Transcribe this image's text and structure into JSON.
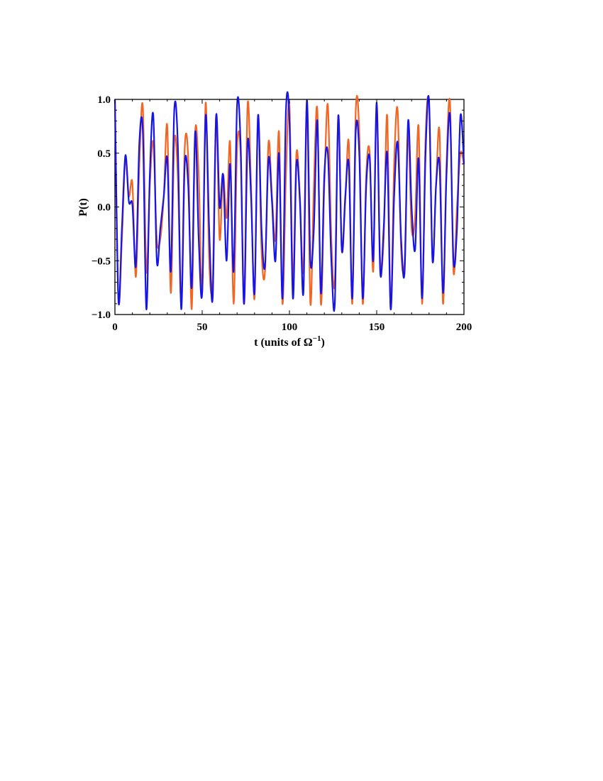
{
  "chart_data": {
    "type": "line",
    "xlabel": "t (units of Ω",
    "xlabel_sup": "−1",
    "xlabel_tail": ")",
    "ylabel": "P(t)",
    "xlim": [
      0,
      200
    ],
    "ylim": [
      -1.0,
      1.0
    ],
    "xticks": [
      "0",
      "50",
      "100",
      "150",
      "200"
    ],
    "xtick_values": [
      0,
      50,
      100,
      150,
      200
    ],
    "yticks": [
      "1.0",
      "0.5",
      "0.0",
      "−0.5",
      "−1.0"
    ],
    "ytick_values": [
      1.0,
      0.5,
      0.0,
      -0.5,
      -1.0
    ],
    "grid": false,
    "legend": "none",
    "series": [
      {
        "color": "#f26522",
        "x": [
          0,
          2,
          4,
          6,
          8,
          10,
          12,
          14,
          16,
          18,
          20,
          22,
          24,
          26,
          28,
          30,
          32,
          34,
          36,
          38,
          40,
          42,
          44,
          46,
          48,
          50,
          52,
          54,
          56,
          58,
          60,
          62,
          64,
          66,
          68,
          70,
          72,
          74,
          76,
          78,
          80,
          82,
          84,
          86,
          88,
          90,
          92,
          94,
          96,
          98,
          100,
          102,
          104,
          106,
          108,
          110,
          112,
          114,
          116,
          118,
          120,
          122,
          124,
          126,
          128,
          130,
          132,
          134,
          136,
          138,
          140,
          142,
          144,
          146,
          148,
          150,
          152,
          154,
          156,
          158,
          160,
          162,
          164,
          166,
          168,
          170,
          172,
          174,
          176,
          178,
          180,
          182,
          184,
          186,
          188,
          190,
          192,
          194,
          196,
          198,
          200
        ],
        "y": [
          1.0,
          -0.85,
          -0.3,
          0.45,
          0.1,
          0.22,
          -0.65,
          0.4,
          0.93,
          -0.6,
          0.2,
          0.6,
          -0.3,
          -0.3,
          0.1,
          0.75,
          -0.8,
          0.6,
          0.3,
          -0.9,
          0.55,
          0.45,
          -0.95,
          0.7,
          0.3,
          -0.8,
          0.97,
          -0.5,
          -0.7,
          0.85,
          -0.3,
          0.3,
          -0.1,
          0.6,
          -0.9,
          0.55,
          0.5,
          -0.9,
          0.95,
          0.2,
          -0.85,
          0.85,
          -0.4,
          -0.6,
          0.6,
          0.1,
          -0.3,
          0.7,
          -0.9,
          0.3,
          0.95,
          -0.7,
          0.5,
          0.1,
          -0.6,
          0.97,
          -0.9,
          0.2,
          0.9,
          -0.9,
          0.2,
          0.95,
          -0.3,
          -0.7,
          0.85,
          -0.4,
          0.05,
          0.6,
          -0.9,
          0.9,
          0.7,
          -0.9,
          0.3,
          0.5,
          -0.6,
          0.95,
          -0.5,
          -0.3,
          0.85,
          -0.95,
          0.4,
          0.9,
          -0.4,
          -0.5,
          0.7,
          -0.2,
          -0.1,
          0.75,
          -0.9,
          0.65,
          0.95,
          -0.5,
          0.2,
          0.7,
          -0.9,
          0.4,
          0.97,
          -0.6,
          0.0,
          0.5,
          0.4
        ]
      },
      {
        "color": "#1515e8",
        "x": [
          0,
          2,
          4,
          6,
          8,
          10,
          12,
          14,
          16,
          18,
          20,
          22,
          24,
          26,
          28,
          30,
          32,
          34,
          36,
          38,
          40,
          42,
          44,
          46,
          48,
          50,
          52,
          54,
          56,
          58,
          60,
          62,
          64,
          66,
          68,
          70,
          72,
          74,
          76,
          78,
          80,
          82,
          84,
          86,
          88,
          90,
          92,
          94,
          96,
          98,
          100,
          102,
          104,
          106,
          108,
          110,
          112,
          114,
          116,
          118,
          120,
          122,
          124,
          126,
          128,
          130,
          132,
          134,
          136,
          138,
          140,
          142,
          144,
          146,
          148,
          150,
          152,
          154,
          156,
          158,
          160,
          162,
          164,
          166,
          168,
          170,
          172,
          174,
          176,
          178,
          180,
          182,
          184,
          186,
          188,
          190,
          192,
          194,
          196,
          198,
          200
        ],
        "y": [
          1.0,
          -0.87,
          -0.2,
          0.48,
          0.05,
          0.02,
          -0.55,
          0.6,
          0.7,
          -0.95,
          0.3,
          0.85,
          -0.5,
          -0.2,
          0.1,
          0.45,
          -0.6,
          0.9,
          0.6,
          -0.95,
          0.4,
          0.2,
          -0.75,
          0.7,
          -0.3,
          -0.8,
          0.85,
          -0.2,
          -0.85,
          0.85,
          0.0,
          0.3,
          -0.5,
          0.4,
          -0.6,
          0.95,
          0.6,
          -0.9,
          0.6,
          0.1,
          -0.8,
          0.85,
          -0.2,
          -0.55,
          0.45,
          0.05,
          -0.5,
          0.5,
          -0.85,
          0.9,
          0.8,
          -0.85,
          0.4,
          0.05,
          -0.8,
          0.99,
          -0.5,
          -0.2,
          0.8,
          -0.8,
          0.3,
          0.5,
          -0.5,
          -0.9,
          0.85,
          -0.4,
          0.1,
          0.4,
          -0.85,
          0.7,
          0.5,
          -0.85,
          0.2,
          0.45,
          -0.5,
          0.97,
          -0.6,
          -0.2,
          0.5,
          -0.95,
          0.1,
          0.6,
          -0.3,
          -0.6,
          0.8,
          0.0,
          -0.4,
          0.45,
          -0.85,
          0.5,
          0.99,
          -0.5,
          0.2,
          0.4,
          -0.8,
          0.3,
          0.85,
          -0.5,
          -0.2,
          0.85,
          0.4
        ]
      }
    ]
  }
}
